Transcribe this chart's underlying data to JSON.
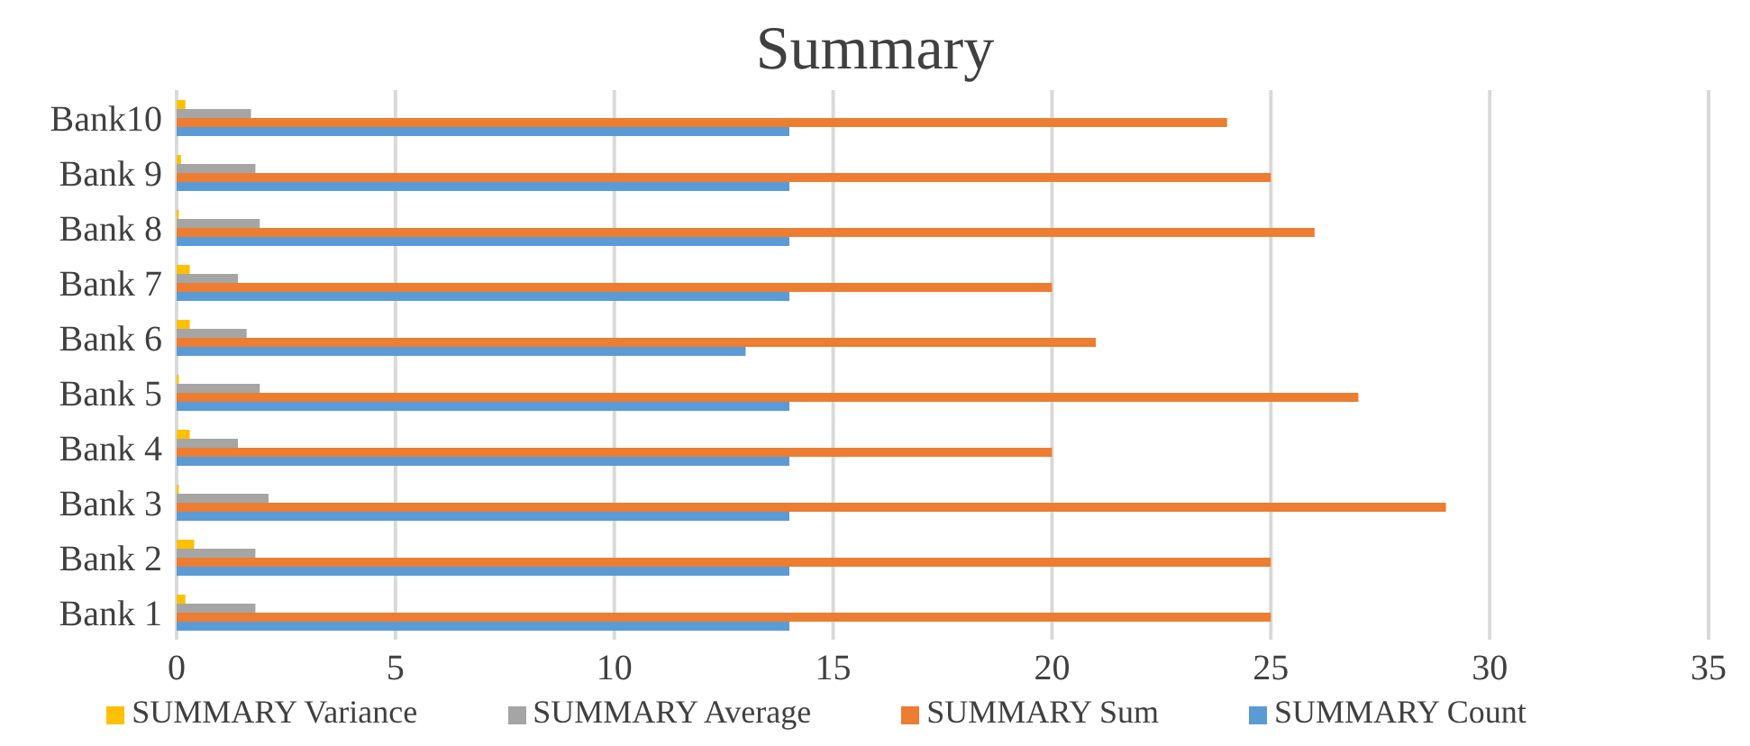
{
  "chart_data": {
    "type": "bar",
    "orientation": "horizontal",
    "title": "Summary",
    "categories": [
      "Bank10",
      "Bank 9",
      "Bank 8",
      "Bank 7",
      "Bank 6",
      "Bank 5",
      "Bank 4",
      "Bank 3",
      "Bank 2",
      "Bank 1"
    ],
    "series": [
      {
        "name": "SUMMARY Variance",
        "color": "#ffc000",
        "values": [
          0.2,
          0.1,
          0.05,
          0.3,
          0.3,
          0.05,
          0.3,
          0.05,
          0.4,
          0.2
        ]
      },
      {
        "name": "SUMMARY Average",
        "color": "#a5a5a5",
        "values": [
          1.7,
          1.8,
          1.9,
          1.4,
          1.6,
          1.9,
          1.4,
          2.1,
          1.8,
          1.8
        ]
      },
      {
        "name": "SUMMARY Sum",
        "color": "#ed7d31",
        "values": [
          24,
          25,
          26,
          20,
          21,
          27,
          20,
          29,
          25,
          25
        ]
      },
      {
        "name": "SUMMARY Count",
        "color": "#5b9bd5",
        "values": [
          14,
          14,
          14,
          14,
          13,
          14,
          14,
          14,
          14,
          14
        ]
      }
    ],
    "xlim": [
      0,
      35
    ],
    "xticks": [
      0,
      5,
      10,
      15,
      20,
      25,
      30,
      35
    ],
    "grid": "x",
    "legend": "bottom"
  }
}
